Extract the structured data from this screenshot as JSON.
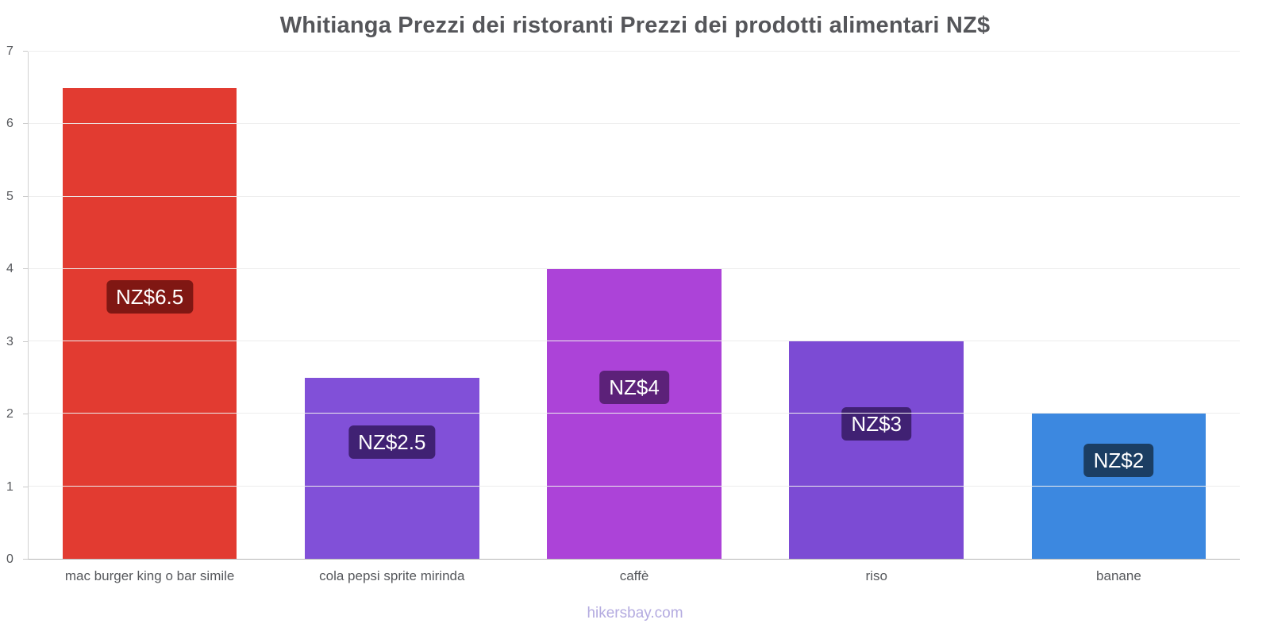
{
  "footer": {
    "text": "hikersbay.com"
  },
  "chart_data": {
    "type": "bar",
    "title": "Whitianga Prezzi dei ristoranti Prezzi dei prodotti alimentari NZ$",
    "xlabel": "",
    "ylabel": "",
    "categories": [
      "mac burger king o bar simile",
      "cola pepsi sprite mirinda",
      "caffè",
      "riso",
      "banane"
    ],
    "values": [
      6.5,
      2.5,
      4,
      3,
      2
    ],
    "value_labels": [
      "NZ$6.5",
      "NZ$2.5",
      "NZ$4",
      "NZ$3",
      "NZ$2"
    ],
    "bar_colors": [
      "#e23b31",
      "#8150d8",
      "#ac43d8",
      "#7c4bd4",
      "#3c88e0"
    ],
    "value_label_bg_colors": [
      "#801713",
      "#402173",
      "#5c2179",
      "#402173",
      "#1b3e63"
    ],
    "ylim": [
      0,
      7
    ],
    "yticks": [
      0,
      1,
      2,
      3,
      4,
      5,
      6,
      7
    ],
    "grid": true,
    "legend": "none"
  }
}
